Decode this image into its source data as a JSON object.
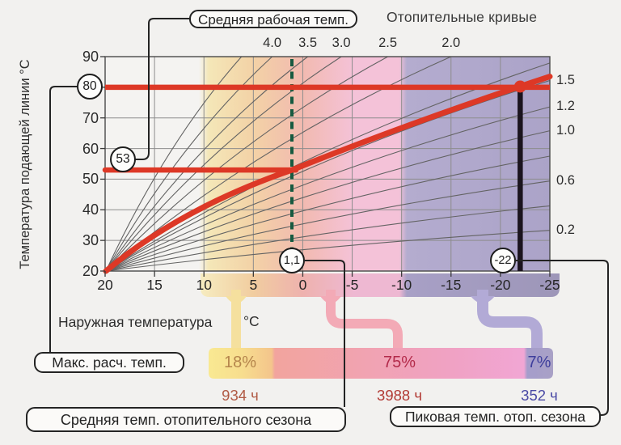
{
  "title": "Отопительные кривые",
  "y_axis": {
    "title": "Температура подающей линии °C",
    "ticks": [
      "90",
      "80",
      "70",
      "60",
      "50",
      "40",
      "30",
      "20"
    ],
    "min": 20,
    "max": 90
  },
  "x_axis": {
    "title": "Наружная температура",
    "unit": "°C",
    "ticks": [
      "20",
      "15",
      "10",
      "5",
      "0",
      "-5",
      "-10",
      "-15",
      "-20",
      "-25"
    ],
    "min": -25,
    "max": 20
  },
  "chart_data": {
    "type": "line",
    "description": "Heating curves: supply line temperature vs outdoor temperature",
    "x_range": [
      20,
      -25
    ],
    "y_range": [
      20,
      90
    ],
    "grid": true,
    "curve_origin": {
      "outdoor": 20,
      "supply": 20
    },
    "heating_curves_top_labels": [
      {
        "label": "4.0",
        "exit_outdoor": 3.1
      },
      {
        "label": "3.5",
        "exit_outdoor": -0.5
      },
      {
        "label": "3.0",
        "exit_outdoor": -3.9
      },
      {
        "label": "2.5",
        "exit_outdoor": -8.6
      },
      {
        "label": "2.0",
        "exit_outdoor": -15.0
      }
    ],
    "heating_curves_right_labels": [
      {
        "label": "1.5",
        "exit_supply": 82.2
      },
      {
        "label": "1.2",
        "exit_supply": 73.6
      },
      {
        "label": "1.0",
        "exit_supply": 65.8
      },
      {
        "label": "0.6",
        "exit_supply": 49.4
      },
      {
        "label": "0.2",
        "exit_supply": 33.3
      }
    ],
    "unlabeled_curves": [
      {
        "exit": "top",
        "exit_outdoor": 6.2
      },
      {
        "exit": "right",
        "exit_supply": 87.9
      },
      {
        "exit": "right",
        "exit_supply": 57.5
      },
      {
        "exit": "right",
        "exit_supply": 41.3
      }
    ],
    "selected_curve": {
      "points": [
        {
          "outdoor": 20,
          "supply": 20
        },
        {
          "outdoor": 1.1,
          "supply": 53
        },
        {
          "outdoor": -22,
          "supply": 80
        }
      ],
      "right_exit_supply": 83.5
    },
    "markers": {
      "max_design_supply_temp": 80,
      "avg_working_supply_temp": 53,
      "avg_season_outdoor_temp": 1.1,
      "peak_season_outdoor_temp": -22
    },
    "distribution": [
      {
        "percent": "18%",
        "hours": "934 ч"
      },
      {
        "percent": "75%",
        "hours": "3988 ч"
      },
      {
        "percent": "7%",
        "hours": "352 ч"
      }
    ]
  },
  "callouts": {
    "avg_working_label": "Средняя рабочая темп.",
    "max_design_label": "Макс. расч. темп.",
    "avg_season_label": "Средняя темп. отопительного сезона",
    "peak_season_label": "Пиковая темп. отоп. сезона",
    "circle_max": "80",
    "circle_avg": "53",
    "circle_season": "1,1",
    "circle_peak": "-22"
  },
  "colors": {
    "red": "#dd3826",
    "green_dashed": "#175a40",
    "black_line": "#1b141e",
    "plot_bg": "#f4f3f1",
    "band_yellow": "#f4e7b8",
    "band_orange": "#f3d2a6",
    "band_salmon": "#f2bab0",
    "band_pink": "#f4c2d8",
    "band_purple": "#aba3c8",
    "strip_yellow": "#f6ecc0",
    "strip_orange": "#f1cda0",
    "strip_salmon": "#eeb2ae",
    "strip_pink": "#eeb8d2",
    "strip_purple": "#a8a0c6",
    "strip_purple_dark": "#9d96b8",
    "pipe_yellow": "#f5e09e",
    "pipe_pink": "#f3aab6",
    "pipe_purple": "#b2aad6",
    "bar_yellow": "#f9e992",
    "bar_orange": "#f4c58c",
    "bar_salmon": "#f2a49e",
    "bar_pink": "#f1a6d4",
    "bar_purple": "#a59dcb",
    "grid": "#8d8d8d",
    "fan_curve": "#636363",
    "percent_colors": [
      "#b5854c",
      "#b32a4a",
      "#3e3e9c"
    ],
    "hours_colors": [
      "#b05a44",
      "#b23b35",
      "#4a4aa5"
    ]
  }
}
